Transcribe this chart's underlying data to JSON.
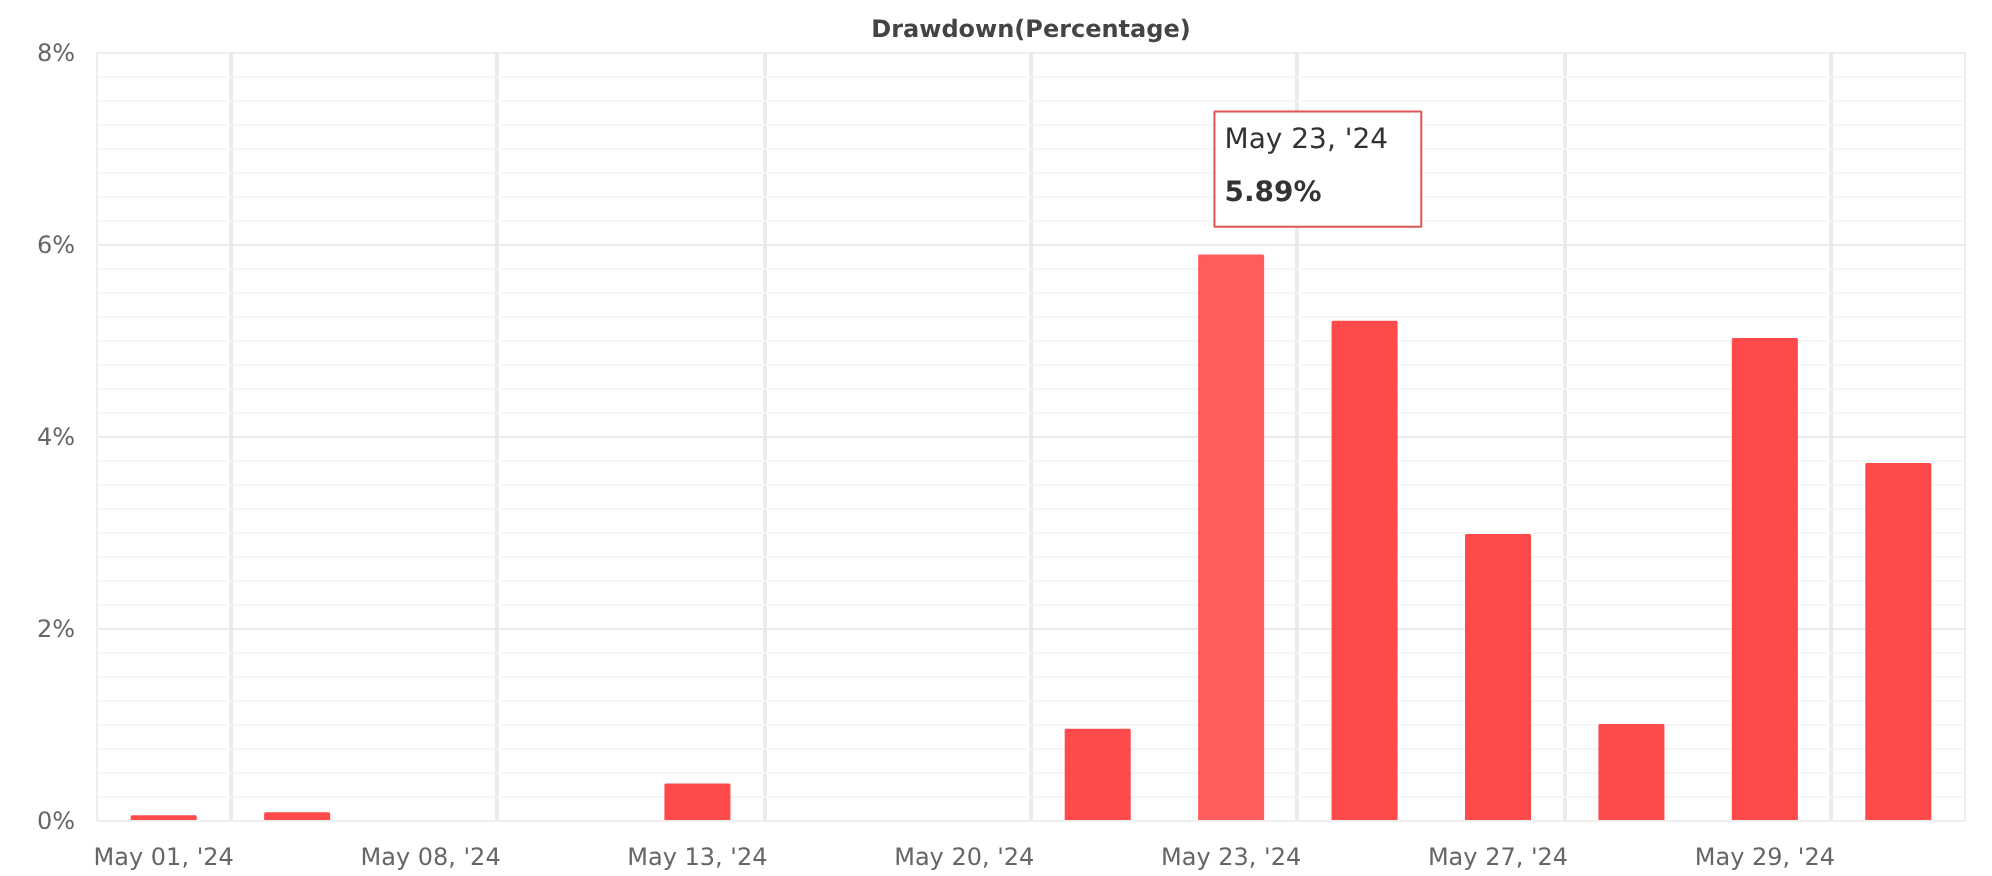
{
  "chart_data": {
    "type": "bar",
    "title": "Drawdown(Percentage)",
    "categories": [
      "May 01, '24",
      null,
      "May 08, '24",
      null,
      "May 13, '24",
      null,
      "May 20, '24",
      null,
      "May 23, '24",
      null,
      "May 27, '24",
      null,
      "May 29, '24",
      null
    ],
    "values": [
      0.05,
      0.08,
      0,
      0,
      0.38,
      0,
      0,
      0.95,
      5.89,
      5.2,
      2.98,
      1.0,
      5.02,
      3.72
    ],
    "colors": [
      "#ff4a4c",
      "#ff4a4c",
      "#ff4a4c",
      "#ff4a4c",
      "#ff4a4c",
      "#ff4a4c",
      "#ff4a4c",
      "#ff4a4c",
      "#ff5c5e",
      "#ff4a4c",
      "#ff4a4c",
      "#ff4a4c",
      "#ff4a4c",
      "#ff4a4c"
    ],
    "ylim": [
      0,
      8
    ],
    "yticks": [
      {
        "value": 0,
        "label": "0%"
      },
      {
        "value": 2,
        "label": "2%"
      },
      {
        "value": 4,
        "label": "4%"
      },
      {
        "value": 6,
        "label": "6%"
      },
      {
        "value": 8,
        "label": "8%"
      }
    ],
    "grid": true,
    "annotations": [
      {
        "text": "May 23, '24\n5.89%",
        "x": "May 23, '24",
        "y": 5.89
      }
    ]
  }
}
